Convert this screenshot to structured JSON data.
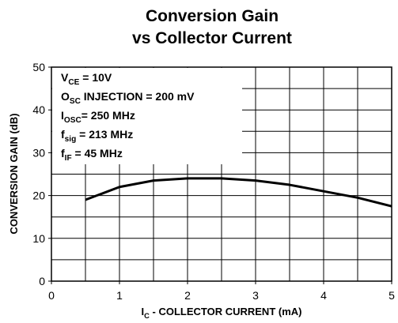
{
  "chart_data": {
    "type": "line",
    "title": [
      "Conversion Gain",
      "vs Collector Current"
    ],
    "xlabel": {
      "main": "I",
      "sub": "C",
      "rest": " - COLLECTOR CURRENT (mA)"
    },
    "ylabel": "CONVERSION GAIN (dB)",
    "annotations": [
      {
        "main": "V",
        "sub": "CE",
        "rest": " = 10V"
      },
      {
        "main": "O",
        "sub": "SC",
        "rest": " INJECTION = 200 mV"
      },
      {
        "main": "I",
        "sub": "OSC",
        "rest": "= 250 MHz"
      },
      {
        "main": "f",
        "sub": "sig",
        "rest": " = 213 MHz"
      },
      {
        "main": "f",
        "sub": "IF",
        "rest": " = 45 MHz"
      }
    ],
    "x": [
      0.5,
      1,
      1.5,
      2,
      2.5,
      3,
      3.5,
      4,
      4.5,
      5
    ],
    "values": [
      19,
      22,
      23.5,
      24,
      24,
      23.5,
      22.5,
      21,
      19.5,
      17.5
    ],
    "color": "#000000",
    "xlim": [
      0,
      5
    ],
    "ylim": [
      0,
      50
    ],
    "xticks": [
      0,
      1,
      2,
      3,
      4,
      5
    ],
    "yticks": [
      0,
      10,
      20,
      30,
      40,
      50
    ],
    "x_gridlines": [
      0.5,
      1,
      1.5,
      2,
      2.5,
      3,
      3.5,
      4,
      4.5
    ],
    "y_gridlines": [
      5,
      10,
      15,
      20,
      25,
      30,
      35,
      40,
      45
    ],
    "grid": true
  }
}
